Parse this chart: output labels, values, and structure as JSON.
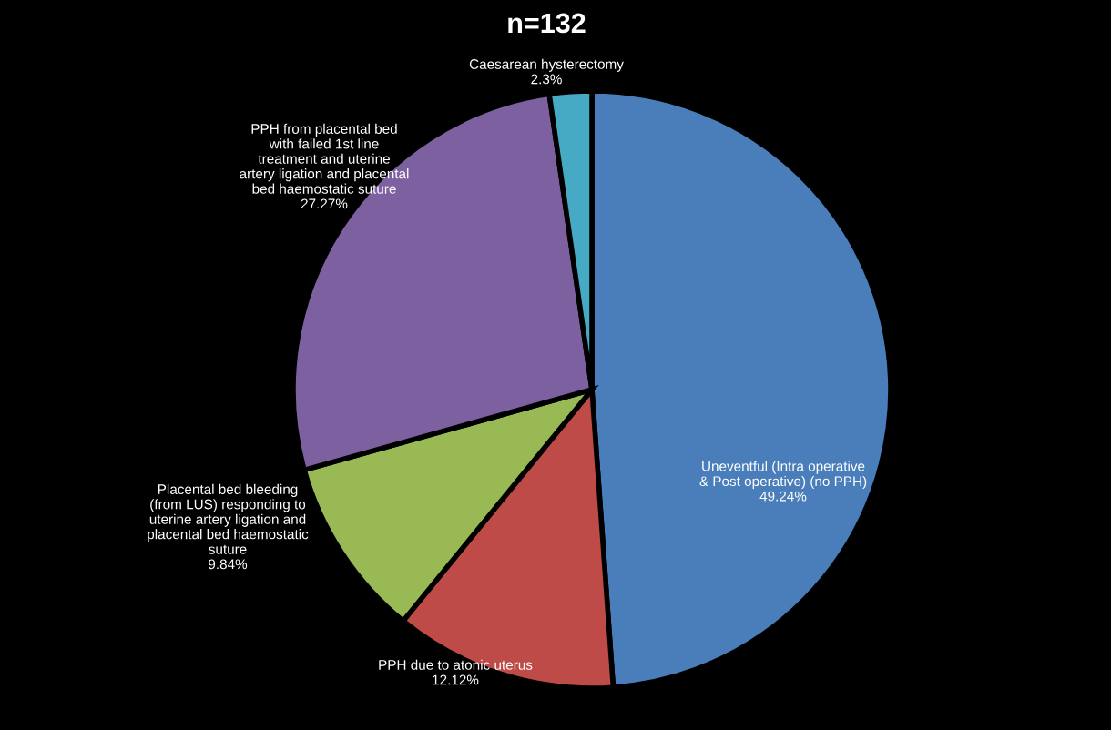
{
  "chart_data": {
    "type": "pie",
    "title": "n=132",
    "categories": [
      "Uneventful (Intra operative\n& Post operative) (no PPH)",
      "PPH due to atonic uterus",
      "Placental bed bleeding\n(from LUS) responding to\nuterine artery ligation and\nplacental bed haemostatic\nsuture",
      "PPH from placental bed\nwith failed 1st line\ntreatment and uterine\nartery ligation and placental\nbed haemostatic suture",
      "Caesarean hysterectomy"
    ],
    "values": [
      49.24,
      12.12,
      9.84,
      27.27,
      2.3
    ],
    "value_labels": [
      "49.24%",
      "12.12%",
      "9.84%",
      "27.27%",
      "2.3%"
    ],
    "colors": [
      "#4a7ebb",
      "#be4b48",
      "#98b954",
      "#7d60a0",
      "#46aac5"
    ]
  }
}
